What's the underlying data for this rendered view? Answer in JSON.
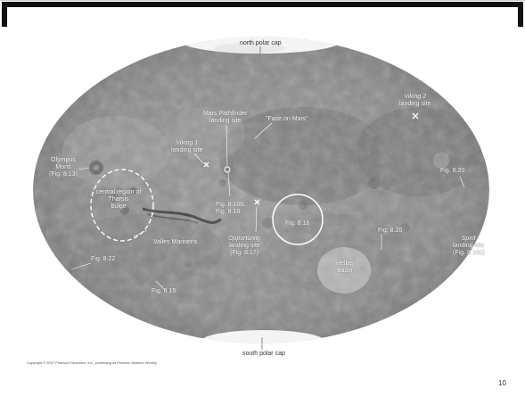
{
  "labels": {
    "north_polar_cap": "north polar cap",
    "south_polar_cap": "south polar cap",
    "viking2": "Viking 2",
    "viking2_sub": "landing site",
    "mars_pathfinder": "Mars Pathfinder",
    "mars_pathfinder_sub": "landing site",
    "face_on_mars": "\"Face on Mars\"",
    "viking1": "Viking 1",
    "viking1_sub": "landing site",
    "olympus": "Olympus",
    "olympus_mons": "Mons",
    "olympus_fig": "(Fig. 8.13)",
    "central_region": "central region of",
    "tharsis": "Tharsis",
    "bulge": "bulge",
    "fig_816b": "Fig. 8.16b,",
    "fig_818": "Fig. 8.18",
    "fig_816": "Fig. 8.16",
    "fig_820_right": "Fig. 8.20",
    "valles": "Valles Marineris",
    "opportunity": "Opportunity",
    "opportunity_sub": "landing site",
    "opportunity_fig": "(Fig. 8.17)",
    "fig_820_mid": "Fig. 8.20",
    "spirit": "Spirit",
    "spirit_sub": "landing site",
    "spirit_fig": "(Fig. 8.16c)",
    "fig_822": "Fig. 8.22",
    "hellas": "Hellas",
    "hellas_basin": "Basin",
    "fig_815": "Fig. 8.15"
  },
  "copyright": "Copyright © 2007 Pearson Education, Inc., publishing as Pearson Addison Wesley",
  "page_number": "10"
}
